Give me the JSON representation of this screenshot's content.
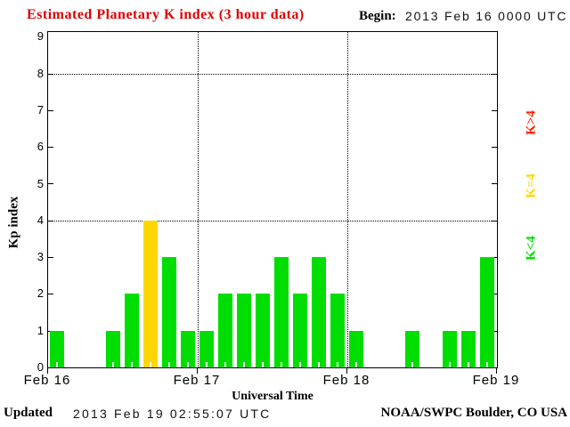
{
  "title": "Estimated Planetary K index (3 hour data)",
  "title_color": "#dd0000",
  "begin": {
    "label": "Begin:",
    "value": "2013 Feb 16 0000 UTC"
  },
  "footer": {
    "updated_label": "Updated",
    "updated_value": "2013 Feb 19 02:55:07 UTC",
    "source": "NOAA/SWPC Boulder, CO USA"
  },
  "legend": [
    {
      "label": "K>4",
      "color": "#ff2200"
    },
    {
      "label": "K=4",
      "color": "#ffd700"
    },
    {
      "label": "K<4",
      "color": "#00dd00"
    }
  ],
  "chart_data": {
    "type": "bar",
    "title": "Estimated Planetary K index (3 hour data)",
    "xlabel": "Universal Time",
    "ylabel": "Kp index",
    "ylim": [
      0,
      9
    ],
    "yticks": [
      0,
      1,
      2,
      3,
      4,
      5,
      6,
      7,
      8,
      9
    ],
    "grid_y": [
      4,
      8
    ],
    "grid_on": true,
    "legend_position": "right",
    "interval_hours": 3,
    "begin_utc_label": "2013 Feb 16 0000 UTC",
    "day_labels": [
      "Feb 16",
      "Feb 17",
      "Feb 18",
      "Feb 19"
    ],
    "series": [
      {
        "name": "Feb 16",
        "values": [
          1,
          0,
          0,
          1,
          2,
          4,
          3,
          1
        ]
      },
      {
        "name": "Feb 17",
        "values": [
          1,
          2,
          2,
          2,
          3,
          2,
          3,
          2
        ]
      },
      {
        "name": "Feb 18",
        "values": [
          1,
          0,
          0,
          1,
          0,
          1,
          1,
          3
        ]
      }
    ],
    "color_rule": {
      "below_4": "#00dd00",
      "equal_4": "#ffd700",
      "above_4": "#ff2200"
    }
  }
}
